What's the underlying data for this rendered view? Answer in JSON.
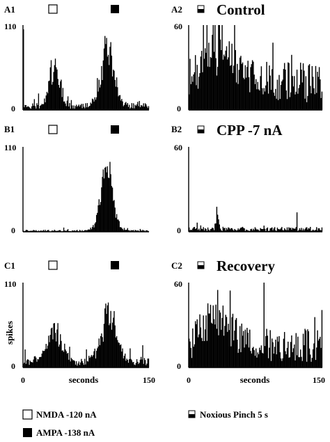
{
  "figure": {
    "rows": [
      {
        "left_label": "A1",
        "right_label": "A2",
        "condition": "Control"
      },
      {
        "left_label": "B1",
        "right_label": "B2",
        "condition": "CPP -7 nA"
      },
      {
        "left_label": "C1",
        "right_label": "C2",
        "condition": "Recovery"
      }
    ],
    "ylabel": "spikes",
    "xlabel": "seconds",
    "legend": {
      "nmda": "NMDA -120 nA",
      "ampa": "AMPA -138 nA",
      "pinch": "Noxious Pinch 5 s"
    },
    "colors": {
      "bars": "#000000",
      "background": "#ffffff"
    }
  },
  "chart_data": [
    {
      "panel": "A1",
      "type": "bar",
      "xlim": [
        0,
        150
      ],
      "ylim": [
        0,
        110
      ],
      "yticks": [
        "110",
        "0"
      ],
      "xticks": [],
      "markers": [
        "nmda-open-square",
        "ampa-filled-square"
      ],
      "baseline": 5,
      "events": [
        {
          "center": 37,
          "width": 6,
          "peak": 60
        },
        {
          "center": 101,
          "width": 8,
          "peak": 80
        }
      ]
    },
    {
      "panel": "A2",
      "type": "bar",
      "xlim": [
        0,
        150
      ],
      "ylim": [
        0,
        60
      ],
      "yticks": [
        "60",
        "0"
      ],
      "xticks": [],
      "markers": [
        "pinch-half-square"
      ],
      "baseline": 20,
      "events": [
        {
          "center": 32,
          "width": 15,
          "peak": 30
        }
      ]
    },
    {
      "panel": "B1",
      "type": "bar",
      "xlim": [
        0,
        150
      ],
      "ylim": [
        0,
        110
      ],
      "yticks": [
        "110",
        "0"
      ],
      "xticks": [],
      "markers": [
        "nmda-open-square",
        "ampa-filled-square"
      ],
      "baseline": 1.5,
      "events": [
        {
          "center": 100,
          "width": 7,
          "peak": 90
        }
      ]
    },
    {
      "panel": "B2",
      "type": "bar",
      "xlim": [
        0,
        150
      ],
      "ylim": [
        0,
        60
      ],
      "yticks": [
        "60",
        "0"
      ],
      "xticks": [],
      "markers": [
        "pinch-half-square"
      ],
      "baseline": 2,
      "events": [
        {
          "center": 32,
          "width": 1.5,
          "peak": 12
        }
      ]
    },
    {
      "panel": "C1",
      "type": "bar",
      "xlim": [
        0,
        150
      ],
      "ylim": [
        0,
        110
      ],
      "yticks": [
        "110",
        "0"
      ],
      "xticks": [
        "0",
        "150"
      ],
      "markers": [
        "nmda-open-square",
        "ampa-filled-square"
      ],
      "baseline": 8,
      "events": [
        {
          "center": 38,
          "width": 9,
          "peak": 42
        },
        {
          "center": 102,
          "width": 9,
          "peak": 68
        }
      ]
    },
    {
      "panel": "C2",
      "type": "bar",
      "xlim": [
        0,
        150
      ],
      "ylim": [
        0,
        60
      ],
      "yticks": [
        "60",
        "0"
      ],
      "xticks": [
        "0",
        "150"
      ],
      "markers": [
        "pinch-half-square"
      ],
      "baseline": 16,
      "events": [
        {
          "center": 32,
          "width": 14,
          "peak": 26
        }
      ]
    }
  ]
}
